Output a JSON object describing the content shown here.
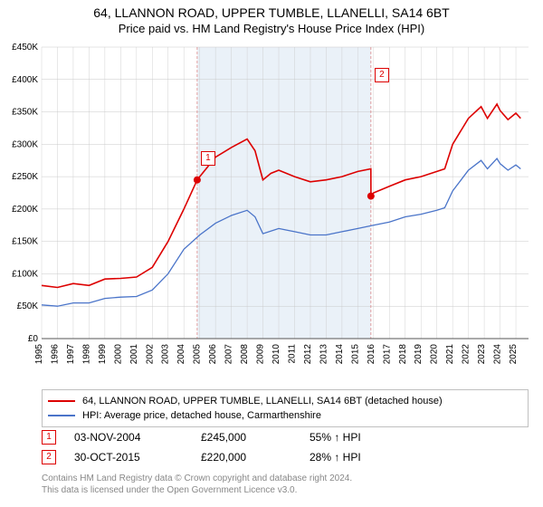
{
  "title": {
    "line1": "64, LLANNON ROAD, UPPER TUMBLE, LLANELLI, SA14 6BT",
    "line2": "Price paid vs. HM Land Registry's House Price Index (HPI)"
  },
  "chart": {
    "type": "line",
    "background_color": "#ffffff",
    "grid_color": "#c8c8c8",
    "axis_color": "#555555",
    "shaded_band_color": "#d0dff0",
    "shaded_band_opacity": 0.45,
    "x": {
      "min": 1995,
      "max": 2025.8,
      "tick_step": 1,
      "labels": [
        "1995",
        "1996",
        "1997",
        "1998",
        "1999",
        "2000",
        "2001",
        "2002",
        "2003",
        "2004",
        "2005",
        "2006",
        "2007",
        "2008",
        "2009",
        "2010",
        "2011",
        "2012",
        "2013",
        "2014",
        "2015",
        "2016",
        "2017",
        "2018",
        "2019",
        "2020",
        "2021",
        "2022",
        "2023",
        "2024",
        "2025"
      ],
      "label_fontsize": 10
    },
    "y": {
      "min": 0,
      "max": 450000,
      "tick_step": 50000,
      "labels": [
        "£0",
        "£50K",
        "£100K",
        "£150K",
        "£200K",
        "£250K",
        "£300K",
        "£350K",
        "£400K",
        "£450K"
      ],
      "label_fontsize": 10
    },
    "shaded_band": {
      "x_start": 2004.84,
      "x_end": 2015.83
    },
    "series": [
      {
        "name": "subject",
        "color": "#dd0000",
        "width": 1.6,
        "points": [
          [
            1995,
            82000
          ],
          [
            1996,
            79000
          ],
          [
            1997,
            85000
          ],
          [
            1998,
            82000
          ],
          [
            1999,
            92000
          ],
          [
            2000,
            93000
          ],
          [
            2001,
            95000
          ],
          [
            2002,
            110000
          ],
          [
            2003,
            150000
          ],
          [
            2004,
            200000
          ],
          [
            2004.84,
            245000
          ],
          [
            2005,
            250000
          ],
          [
            2006,
            280000
          ],
          [
            2007,
            295000
          ],
          [
            2008,
            308000
          ],
          [
            2008.5,
            290000
          ],
          [
            2009,
            245000
          ],
          [
            2009.5,
            255000
          ],
          [
            2010,
            260000
          ],
          [
            2011,
            250000
          ],
          [
            2012,
            242000
          ],
          [
            2013,
            245000
          ],
          [
            2014,
            250000
          ],
          [
            2015,
            258000
          ],
          [
            2015.83,
            262000
          ],
          [
            2015.831,
            220000
          ],
          [
            2016,
            225000
          ],
          [
            2017,
            235000
          ],
          [
            2018,
            245000
          ],
          [
            2019,
            250000
          ],
          [
            2020,
            258000
          ],
          [
            2020.5,
            262000
          ],
          [
            2021,
            300000
          ],
          [
            2022,
            340000
          ],
          [
            2022.8,
            358000
          ],
          [
            2023.2,
            340000
          ],
          [
            2023.8,
            362000
          ],
          [
            2024,
            352000
          ],
          [
            2024.5,
            338000
          ],
          [
            2025,
            348000
          ],
          [
            2025.3,
            340000
          ]
        ]
      },
      {
        "name": "hpi",
        "color": "#4a74c9",
        "width": 1.3,
        "points": [
          [
            1995,
            52000
          ],
          [
            1996,
            50000
          ],
          [
            1997,
            55000
          ],
          [
            1998,
            55000
          ],
          [
            1999,
            62000
          ],
          [
            2000,
            64000
          ],
          [
            2001,
            65000
          ],
          [
            2002,
            75000
          ],
          [
            2003,
            100000
          ],
          [
            2004,
            138000
          ],
          [
            2005,
            160000
          ],
          [
            2006,
            178000
          ],
          [
            2007,
            190000
          ],
          [
            2008,
            198000
          ],
          [
            2008.5,
            188000
          ],
          [
            2009,
            162000
          ],
          [
            2010,
            170000
          ],
          [
            2011,
            165000
          ],
          [
            2012,
            160000
          ],
          [
            2013,
            160000
          ],
          [
            2014,
            165000
          ],
          [
            2015,
            170000
          ],
          [
            2016,
            175000
          ],
          [
            2017,
            180000
          ],
          [
            2018,
            188000
          ],
          [
            2019,
            192000
          ],
          [
            2020,
            198000
          ],
          [
            2020.5,
            202000
          ],
          [
            2021,
            228000
          ],
          [
            2022,
            260000
          ],
          [
            2022.8,
            275000
          ],
          [
            2023.2,
            262000
          ],
          [
            2023.8,
            278000
          ],
          [
            2024,
            270000
          ],
          [
            2024.5,
            260000
          ],
          [
            2025,
            268000
          ],
          [
            2025.3,
            262000
          ]
        ]
      }
    ],
    "markers": [
      {
        "n": "1",
        "x": 2004.84,
        "y": 245000,
        "dot_color": "#dd0000",
        "badge_dy": -32
      },
      {
        "n": "2",
        "x": 2015.83,
        "y": 220000,
        "dot_color": "#dd0000",
        "badge_dy": -142
      }
    ]
  },
  "legend": {
    "items": [
      {
        "color": "#dd0000",
        "label": "64, LLANNON ROAD, UPPER TUMBLE, LLANELLI, SA14 6BT (detached house)"
      },
      {
        "color": "#4a74c9",
        "label": "HPI: Average price, detached house, Carmarthenshire"
      }
    ]
  },
  "sales": [
    {
      "n": "1",
      "date": "03-NOV-2004",
      "price": "£245,000",
      "pct": "55% ↑ HPI"
    },
    {
      "n": "2",
      "date": "30-OCT-2015",
      "price": "£220,000",
      "pct": "28% ↑ HPI"
    }
  ],
  "footer": {
    "line1": "Contains HM Land Registry data © Crown copyright and database right 2024.",
    "line2": "This data is licensed under the Open Government Licence v3.0."
  }
}
